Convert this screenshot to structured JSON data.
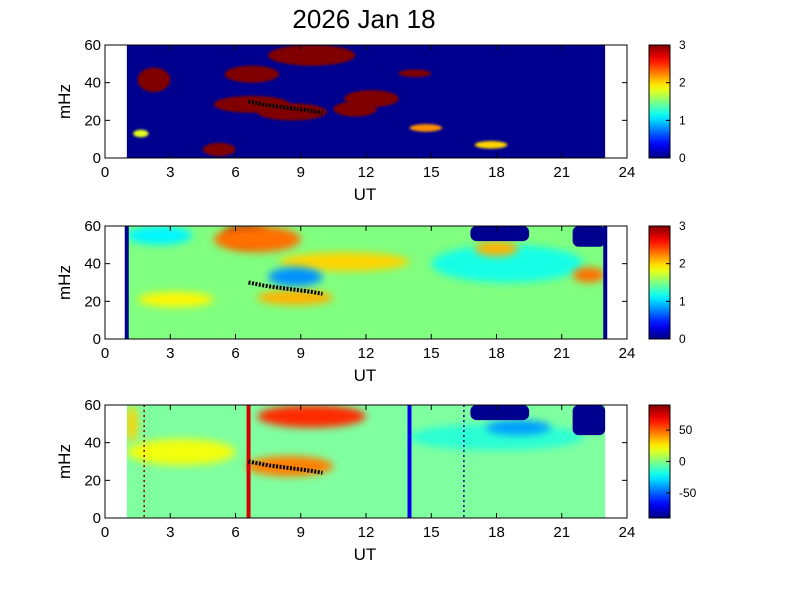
{
  "title": "2026 Jan 18",
  "chart_data": [
    {
      "type": "heatmap",
      "xlabel": "UT",
      "ylabel": "mHz",
      "xlim": [
        0,
        24
      ],
      "ylim": [
        0,
        60
      ],
      "x_ticks": [
        "0",
        "3",
        "6",
        "9",
        "12",
        "15",
        "18",
        "21",
        "24"
      ],
      "y_ticks": [
        "0",
        "20",
        "40",
        "60"
      ],
      "data_coverage": [
        1,
        23
      ],
      "background": "#00008f",
      "blobs": [
        {
          "ut": [
            1.5,
            3.0
          ],
          "mhz": [
            35,
            48
          ],
          "level": 3
        },
        {
          "ut": [
            5.0,
            8.5
          ],
          "mhz": [
            24,
            33
          ],
          "level": 3
        },
        {
          "ut": [
            7.0,
            10.2
          ],
          "mhz": [
            20,
            29
          ],
          "level": 3
        },
        {
          "ut": [
            10.5,
            12.5
          ],
          "mhz": [
            22,
            30
          ],
          "level": 3
        },
        {
          "ut": [
            5.5,
            8.0
          ],
          "mhz": [
            40,
            49
          ],
          "level": 3
        },
        {
          "ut": [
            7.5,
            11.5
          ],
          "mhz": [
            49,
            60
          ],
          "level": 3
        },
        {
          "ut": [
            11.0,
            13.5
          ],
          "mhz": [
            27,
            36
          ],
          "level": 3
        },
        {
          "ut": [
            13.5,
            15.0
          ],
          "mhz": [
            43,
            47
          ],
          "level": 3
        },
        {
          "ut": [
            4.5,
            6.0
          ],
          "mhz": [
            1,
            8
          ],
          "level": 3
        },
        {
          "ut": [
            14.0,
            15.5
          ],
          "mhz": [
            14,
            18
          ],
          "level": 2.2
        },
        {
          "ut": [
            17.0,
            18.5
          ],
          "mhz": [
            5,
            9
          ],
          "level": 2.0
        },
        {
          "ut": [
            1.3,
            2.0
          ],
          "mhz": [
            11,
            15
          ],
          "level": 1.8
        }
      ],
      "track": {
        "ut": [
          6.6,
          7.5,
          8.5,
          9.5,
          10.0
        ],
        "mhz": [
          30,
          28,
          26.5,
          25,
          24
        ]
      },
      "colorbar": {
        "min": 0,
        "max": 3,
        "ticks": [
          "0",
          "1",
          "2",
          "3"
        ]
      },
      "markers": []
    },
    {
      "type": "heatmap",
      "xlabel": "UT",
      "ylabel": "mHz",
      "xlim": [
        0,
        24
      ],
      "ylim": [
        0,
        60
      ],
      "x_ticks": [
        "0",
        "3",
        "6",
        "9",
        "12",
        "15",
        "18",
        "21",
        "24"
      ],
      "y_ticks": [
        "0",
        "20",
        "40",
        "60"
      ],
      "data_coverage": [
        1,
        23
      ],
      "background": "#80ff80",
      "blobs": [
        {
          "ut": [
            5.5,
            7.5
          ],
          "mhz": [
            50,
            60
          ],
          "level": 3
        },
        {
          "ut": [
            5.0,
            9.0
          ],
          "mhz": [
            46,
            60
          ],
          "level": 2.3
        },
        {
          "ut": [
            8.0,
            14.0
          ],
          "mhz": [
            36,
            46
          ],
          "level": 2.0
        },
        {
          "ut": [
            1.5,
            5.0
          ],
          "mhz": [
            17,
            25
          ],
          "level": 1.9
        },
        {
          "ut": [
            7.0,
            10.5
          ],
          "mhz": [
            18,
            26
          ],
          "level": 2.1
        },
        {
          "ut": [
            1.0,
            4.0
          ],
          "mhz": [
            50,
            60
          ],
          "level": 1.1
        },
        {
          "ut": [
            7.5,
            10.0
          ],
          "mhz": [
            28,
            38
          ],
          "level": 0.8
        },
        {
          "ut": [
            15.0,
            22.0
          ],
          "mhz": [
            30,
            50
          ],
          "level": 1.2
        },
        {
          "ut": [
            17.0,
            19.0
          ],
          "mhz": [
            44,
            52
          ],
          "level": 2.1
        },
        {
          "ut": [
            21.5,
            23.0
          ],
          "mhz": [
            30,
            38
          ],
          "level": 2.3
        }
      ],
      "gaps": [
        {
          "ut": [
            16.8,
            19.5
          ],
          "mhz": [
            52,
            60
          ]
        },
        {
          "ut": [
            21.5,
            23.0
          ],
          "mhz": [
            49,
            60
          ]
        }
      ],
      "edges": [
        1,
        23
      ],
      "track": {
        "ut": [
          6.6,
          7.5,
          8.5,
          9.5,
          10.0
        ],
        "mhz": [
          30,
          28,
          26.5,
          25,
          24
        ]
      },
      "colorbar": {
        "min": 0,
        "max": 3,
        "ticks": [
          "0",
          "1",
          "2",
          "3"
        ]
      },
      "markers": []
    },
    {
      "type": "heatmap",
      "xlabel": "UT",
      "ylabel": "mHz",
      "xlim": [
        0,
        24
      ],
      "ylim": [
        0,
        60
      ],
      "x_ticks": [
        "0",
        "3",
        "6",
        "9",
        "12",
        "15",
        "18",
        "21",
        "24"
      ],
      "y_ticks": [
        "0",
        "20",
        "40",
        "60"
      ],
      "data_coverage": [
        1,
        23
      ],
      "background": "#7fffa0",
      "blobs": [
        {
          "ut": [
            7.0,
            12.0
          ],
          "mhz": [
            48,
            60
          ],
          "level": 60
        },
        {
          "ut": [
            6.5,
            10.5
          ],
          "mhz": [
            22,
            33
          ],
          "level": 45
        },
        {
          "ut": [
            1.0,
            6.0
          ],
          "mhz": [
            28,
            42
          ],
          "level": 20
        },
        {
          "ut": [
            14.0,
            22.0
          ],
          "mhz": [
            36,
            50
          ],
          "level": -15
        },
        {
          "ut": [
            17.5,
            20.5
          ],
          "mhz": [
            44,
            52
          ],
          "level": -40
        },
        {
          "ut": [
            1.0,
            1.5
          ],
          "mhz": [
            40,
            60
          ],
          "level": 30
        }
      ],
      "gaps": [
        {
          "ut": [
            16.8,
            19.5
          ],
          "mhz": [
            52,
            60
          ]
        },
        {
          "ut": [
            21.5,
            23.0
          ],
          "mhz": [
            44,
            60
          ]
        }
      ],
      "track": {
        "ut": [
          6.6,
          7.5,
          8.5,
          9.5,
          10.0
        ],
        "mhz": [
          30,
          28,
          26.5,
          25,
          24
        ]
      },
      "colorbar": {
        "min": -90,
        "max": 90,
        "ticks": [
          "50",
          "0",
          "-50"
        ],
        "tick_values": [
          50,
          0,
          -50
        ]
      },
      "markers": [
        {
          "ut": 6.6,
          "color": "#d40000",
          "style": "solid"
        },
        {
          "ut": 14.0,
          "color": "#0000ee",
          "style": "solid"
        },
        {
          "ut": 1.8,
          "color": "#8b0000",
          "style": "dotted"
        },
        {
          "ut": 16.5,
          "color": "#000080",
          "style": "dotted"
        }
      ]
    }
  ]
}
